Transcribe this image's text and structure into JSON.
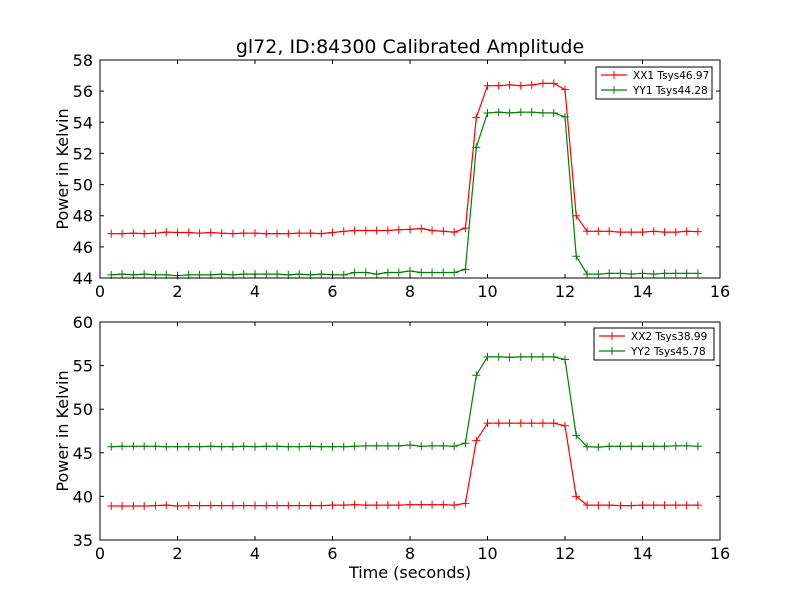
{
  "title": "gl72, ID:84300 Calibrated Amplitude",
  "chart_data": [
    {
      "type": "line",
      "title": "gl72, ID:84300 Calibrated Amplitude",
      "xlabel": "",
      "ylabel": "Power in Kelvin",
      "xlim": [
        0,
        16
      ],
      "ylim": [
        44,
        58
      ],
      "xticks": [
        "0",
        "2",
        "4",
        "6",
        "8",
        "10",
        "12",
        "14",
        "16"
      ],
      "yticks": [
        "44",
        "46",
        "48",
        "50",
        "52",
        "54",
        "56",
        "58"
      ],
      "grid": false,
      "legend_position": "top-right",
      "x": [
        0.29,
        0.57,
        0.86,
        1.14,
        1.43,
        1.71,
        2.0,
        2.29,
        2.57,
        2.86,
        3.14,
        3.43,
        3.71,
        4.0,
        4.29,
        4.57,
        4.86,
        5.14,
        5.43,
        5.71,
        6.0,
        6.29,
        6.57,
        6.86,
        7.14,
        7.43,
        7.71,
        8.0,
        8.29,
        8.57,
        8.86,
        9.14,
        9.43,
        9.71,
        10.0,
        10.29,
        10.57,
        10.86,
        11.14,
        11.43,
        11.71,
        12.0,
        12.29,
        12.57,
        12.86,
        13.14,
        13.43,
        13.71,
        14.0,
        14.29,
        14.57,
        14.86,
        15.14,
        15.43
      ],
      "series": [
        {
          "name": "XX1 Tsys46.97",
          "color": "#ff0000",
          "values": [
            46.85,
            46.85,
            46.88,
            46.85,
            46.88,
            46.95,
            46.92,
            46.92,
            46.88,
            46.92,
            46.88,
            46.85,
            46.88,
            46.88,
            46.85,
            46.85,
            46.85,
            46.88,
            46.88,
            46.85,
            46.92,
            47.0,
            47.05,
            47.05,
            47.05,
            47.05,
            47.1,
            47.12,
            47.18,
            47.05,
            47.0,
            46.95,
            47.2,
            54.3,
            56.35,
            56.35,
            56.4,
            56.35,
            56.4,
            56.5,
            56.5,
            56.1,
            48.0,
            47.0,
            47.0,
            47.0,
            46.95,
            46.95,
            46.95,
            47.0,
            46.95,
            46.95,
            47.0,
            46.98
          ]
        },
        {
          "name": "YY1 Tsys44.28",
          "color": "#008000",
          "values": [
            44.2,
            44.25,
            44.2,
            44.25,
            44.2,
            44.2,
            44.15,
            44.2,
            44.2,
            44.2,
            44.25,
            44.2,
            44.25,
            44.25,
            44.25,
            44.25,
            44.2,
            44.25,
            44.2,
            44.25,
            44.2,
            44.2,
            44.35,
            44.35,
            44.25,
            44.35,
            44.35,
            44.45,
            44.35,
            44.35,
            44.35,
            44.35,
            44.55,
            52.4,
            54.6,
            54.65,
            54.6,
            54.65,
            54.65,
            54.6,
            54.6,
            54.35,
            45.4,
            44.25,
            44.25,
            44.3,
            44.3,
            44.25,
            44.3,
            44.25,
            44.3,
            44.3,
            44.3,
            44.3
          ]
        }
      ]
    },
    {
      "type": "line",
      "title": "",
      "xlabel": "Time (seconds)",
      "ylabel": "Power in Kelvin",
      "xlim": [
        0,
        16
      ],
      "ylim": [
        35,
        60
      ],
      "xticks": [
        "0",
        "2",
        "4",
        "6",
        "8",
        "10",
        "12",
        "14",
        "16"
      ],
      "yticks": [
        "35",
        "40",
        "45",
        "50",
        "55",
        "60"
      ],
      "grid": false,
      "legend_position": "top-right",
      "x": [
        0.29,
        0.57,
        0.86,
        1.14,
        1.43,
        1.71,
        2.0,
        2.29,
        2.57,
        2.86,
        3.14,
        3.43,
        3.71,
        4.0,
        4.29,
        4.57,
        4.86,
        5.14,
        5.43,
        5.71,
        6.0,
        6.29,
        6.57,
        6.86,
        7.14,
        7.43,
        7.71,
        8.0,
        8.29,
        8.57,
        8.86,
        9.14,
        9.43,
        9.71,
        10.0,
        10.29,
        10.57,
        10.86,
        11.14,
        11.43,
        11.71,
        12.0,
        12.29,
        12.57,
        12.86,
        13.14,
        13.43,
        13.71,
        14.0,
        14.29,
        14.57,
        14.86,
        15.14,
        15.43
      ],
      "series": [
        {
          "name": "XX2 Tsys38.99",
          "color": "#ff0000",
          "values": [
            38.9,
            38.9,
            38.9,
            38.9,
            38.95,
            39.0,
            38.9,
            38.95,
            38.95,
            38.95,
            38.95,
            38.95,
            38.95,
            38.95,
            38.95,
            38.95,
            38.95,
            38.95,
            38.95,
            38.95,
            39.0,
            39.0,
            39.05,
            39.0,
            39.0,
            39.0,
            39.0,
            39.05,
            39.05,
            39.05,
            39.05,
            39.0,
            39.2,
            46.4,
            48.4,
            48.4,
            48.4,
            48.4,
            48.4,
            48.4,
            48.4,
            48.1,
            40.0,
            39.0,
            39.0,
            39.0,
            38.95,
            38.95,
            39.0,
            39.0,
            39.0,
            39.0,
            39.0,
            39.0
          ]
        },
        {
          "name": "YY2 Tsys45.78",
          "color": "#008000",
          "values": [
            45.7,
            45.75,
            45.75,
            45.75,
            45.75,
            45.7,
            45.7,
            45.7,
            45.7,
            45.75,
            45.7,
            45.7,
            45.75,
            45.7,
            45.75,
            45.75,
            45.7,
            45.7,
            45.75,
            45.7,
            45.7,
            45.7,
            45.75,
            45.8,
            45.8,
            45.8,
            45.8,
            45.9,
            45.75,
            45.8,
            45.8,
            45.75,
            46.1,
            53.9,
            56.0,
            56.0,
            55.95,
            56.0,
            56.0,
            56.0,
            56.0,
            55.7,
            47.0,
            45.7,
            45.65,
            45.75,
            45.75,
            45.75,
            45.75,
            45.75,
            45.75,
            45.8,
            45.8,
            45.75
          ]
        }
      ]
    }
  ]
}
